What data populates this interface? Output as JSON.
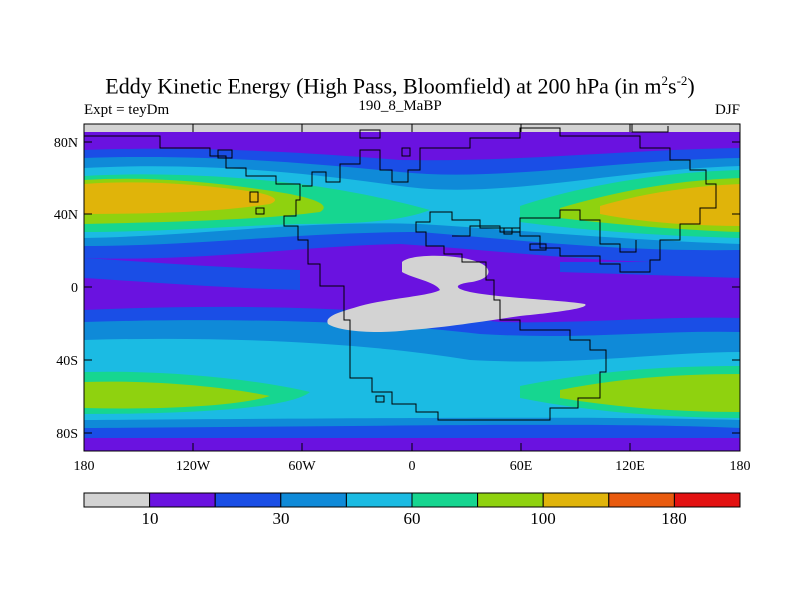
{
  "title": {
    "main": "Eddy Kinetic Energy (High Pass, Bloomfield) at 200 hPa (in m",
    "sup1": "2",
    "mid": "s",
    "sup2": "-2",
    "end": ")"
  },
  "subtitle": {
    "left": "Expt = teyDm",
    "center": "190_8_MaBP",
    "right": "DJF"
  },
  "axes": {
    "y_labels": [
      "80N",
      "40N",
      "0",
      "40S",
      "80S"
    ],
    "x_labels": [
      "180",
      "120W",
      "60W",
      "0",
      "60E",
      "120E",
      "180"
    ]
  },
  "colorbar": {
    "colors": [
      "#d3d3d3",
      "#6a12e0",
      "#1a4ee6",
      "#0f8ad8",
      "#1bbbe3",
      "#16d690",
      "#8fd20f",
      "#e0b40a",
      "#e85a0e",
      "#e31111"
    ],
    "labels": [
      "10",
      "30",
      "60",
      "100",
      "180"
    ]
  },
  "palette": {
    "missing": "#d3d3d3",
    "violet": "#6a12e0",
    "blue": "#1a4ee6",
    "mid_blue": "#0f8ad8",
    "cyan": "#1bbbe3",
    "teal": "#16d690",
    "green": "#8fd20f",
    "yellow": "#e0b40a"
  }
}
